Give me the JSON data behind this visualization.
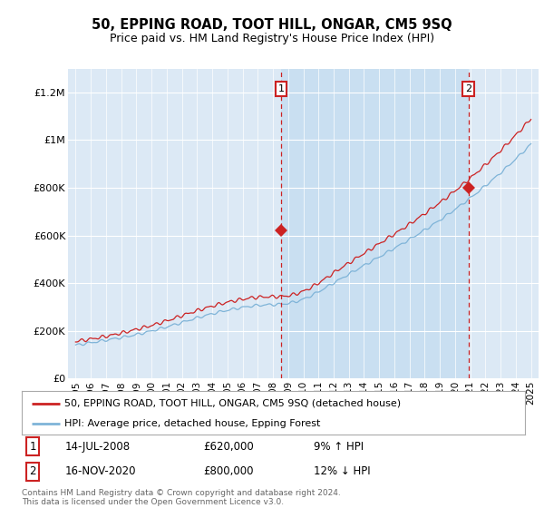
{
  "title": "50, EPPING ROAD, TOOT HILL, ONGAR, CM5 9SQ",
  "subtitle": "Price paid vs. HM Land Registry's House Price Index (HPI)",
  "plot_bg_color": "#dce9f5",
  "hpi_line_color": "#7fb4d8",
  "price_line_color": "#cc2222",
  "vline_color": "#cc2222",
  "shade_color": "#c5ddf0",
  "ylim": [
    0,
    1300000
  ],
  "yticks": [
    0,
    200000,
    400000,
    600000,
    800000,
    1000000,
    1200000
  ],
  "ytick_labels": [
    "£0",
    "£200K",
    "£400K",
    "£600K",
    "£800K",
    "£1M",
    "£1.2M"
  ],
  "sale1_year": 2008.54,
  "sale1_price": 620000,
  "sale2_year": 2020.88,
  "sale2_price": 800000,
  "sale1_date": "14-JUL-2008",
  "sale1_hpi_pct": "9% ↑ HPI",
  "sale2_date": "16-NOV-2020",
  "sale2_hpi_pct": "12% ↓ HPI",
  "legend_line1": "50, EPPING ROAD, TOOT HILL, ONGAR, CM5 9SQ (detached house)",
  "legend_line2": "HPI: Average price, detached house, Epping Forest",
  "footer": "Contains HM Land Registry data © Crown copyright and database right 2024.\nThis data is licensed under the Open Government Licence v3.0.",
  "xmin": 1994.5,
  "xmax": 2025.5
}
